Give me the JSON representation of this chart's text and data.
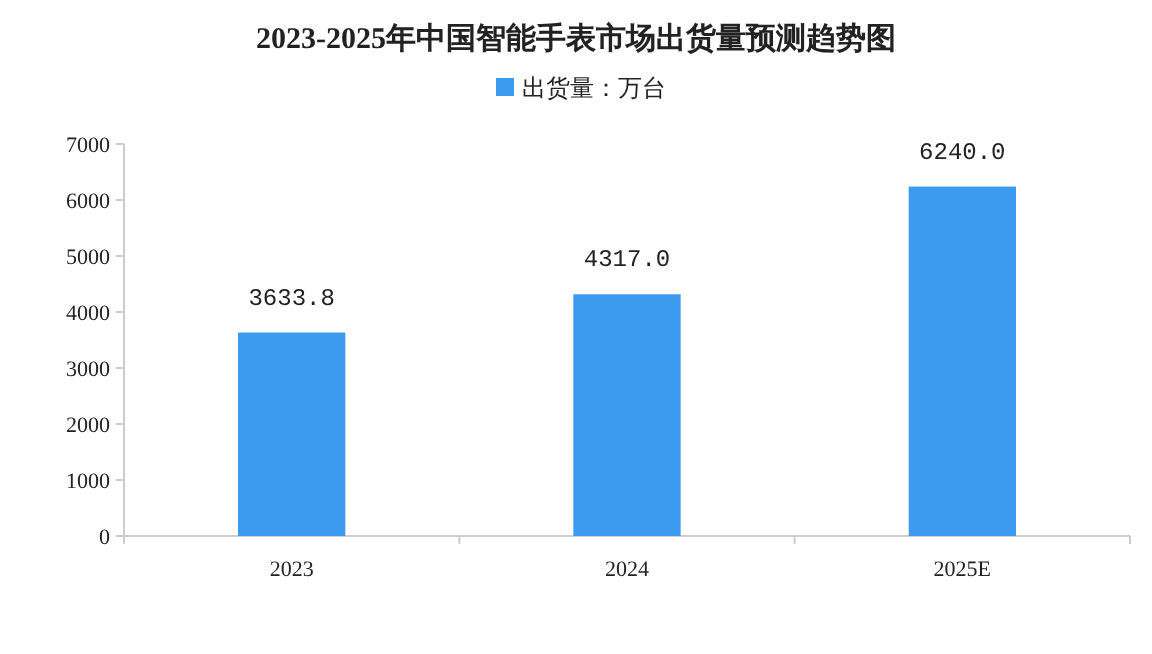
{
  "chart_data": {
    "type": "bar",
    "title": "2023-2025年中国智能手表市场出货量预测趋势图",
    "categories": [
      "2023",
      "2024",
      "2025E"
    ],
    "series": [
      {
        "name": "出货量：万台",
        "color": "#3d9bef",
        "values": [
          3633.8,
          4317.0,
          6240.0
        ]
      }
    ],
    "value_labels": [
      "3633.8",
      "4317.0",
      "6240.0"
    ],
    "ylim": [
      0,
      7000
    ],
    "yticks": [
      0,
      1000,
      2000,
      3000,
      4000,
      5000,
      6000,
      7000
    ],
    "grid": false,
    "legend": "top"
  }
}
